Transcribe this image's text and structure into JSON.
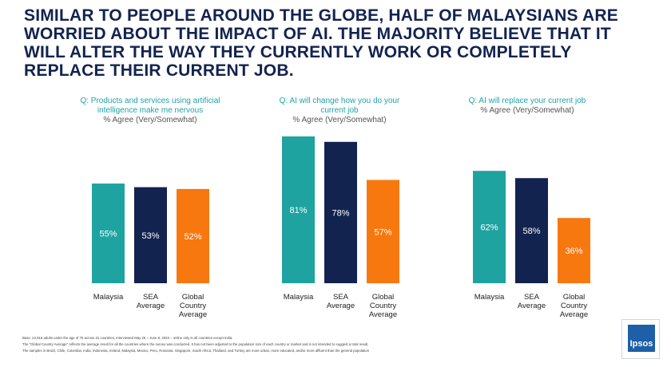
{
  "headline": "SIMILAR TO PEOPLE AROUND THE GLOBE, HALF OF MALAYSIANS ARE WORRIED ABOUT THE IMPACT OF AI. THE MAJORITY BELIEVE THAT IT WILL ALTER THE WAY THEY CURRENTLY WORK OR COMPLETELY REPLACE THEIR CURRENT JOB.",
  "colors": {
    "malaysia": "#1ea3a0",
    "sea": "#13234f",
    "global": "#f7780f",
    "title": "#13234f",
    "question": "#1ea3a8"
  },
  "footnotes": [
    "Base: 22,816 adults under the age of 75 across 31 countries, interviewed May 26 – June 9, 2023 – online only in all countries except India.",
    "The \"Global Country Average\" reflects the average result for all the countries where the survey was conducted. It has not been adjusted to the population size of each country or market and is not intended to suggest a total result.",
    "The samples in Brazil, Chile, Colombia, India, Indonesia, Ireland, Malaysia, Mexico, Peru, Romania, Singapore, South Africa, Thailand, and Turkey are more urban, more educated, and/or more affluent than the general population"
  ],
  "logo_text": "Ipsos",
  "chart_data": [
    {
      "type": "bar",
      "question": "Q: Products and services using artificial intelligence make me nervous",
      "subtitle": "% Agree (Very/Somewhat)",
      "categories": [
        "Malaysia",
        "SEA Average",
        "Global Country Average"
      ],
      "category_lines": [
        [
          "Malaysia"
        ],
        [
          "SEA",
          "Average"
        ],
        [
          "Global",
          "Country",
          "Average"
        ]
      ],
      "values": [
        55,
        53,
        52
      ],
      "value_labels": [
        "55%",
        "53%",
        "52%"
      ]
    },
    {
      "type": "bar",
      "question": "Q: AI will change how you do your current job",
      "subtitle": "% Agree (Very/Somewhat)",
      "categories": [
        "Malaysia",
        "SEA Average",
        "Global Country Average"
      ],
      "category_lines": [
        [
          "Malaysia"
        ],
        [
          "SEA",
          "Average"
        ],
        [
          "Global",
          "Country",
          "Average"
        ]
      ],
      "values": [
        81,
        78,
        57
      ],
      "value_labels": [
        "81%",
        "78%",
        "57%"
      ]
    },
    {
      "type": "bar",
      "question": "Q: AI will replace your current job",
      "subtitle": "% Agree (Very/Somewhat)",
      "categories": [
        "Malaysia",
        "SEA Average",
        "Global Country Average"
      ],
      "category_lines": [
        [
          "Malaysia"
        ],
        [
          "SEA",
          "Average"
        ],
        [
          "Global",
          "Country",
          "Average"
        ]
      ],
      "values": [
        62,
        58,
        36
      ],
      "value_labels": [
        "62%",
        "58%",
        "36%"
      ]
    }
  ]
}
